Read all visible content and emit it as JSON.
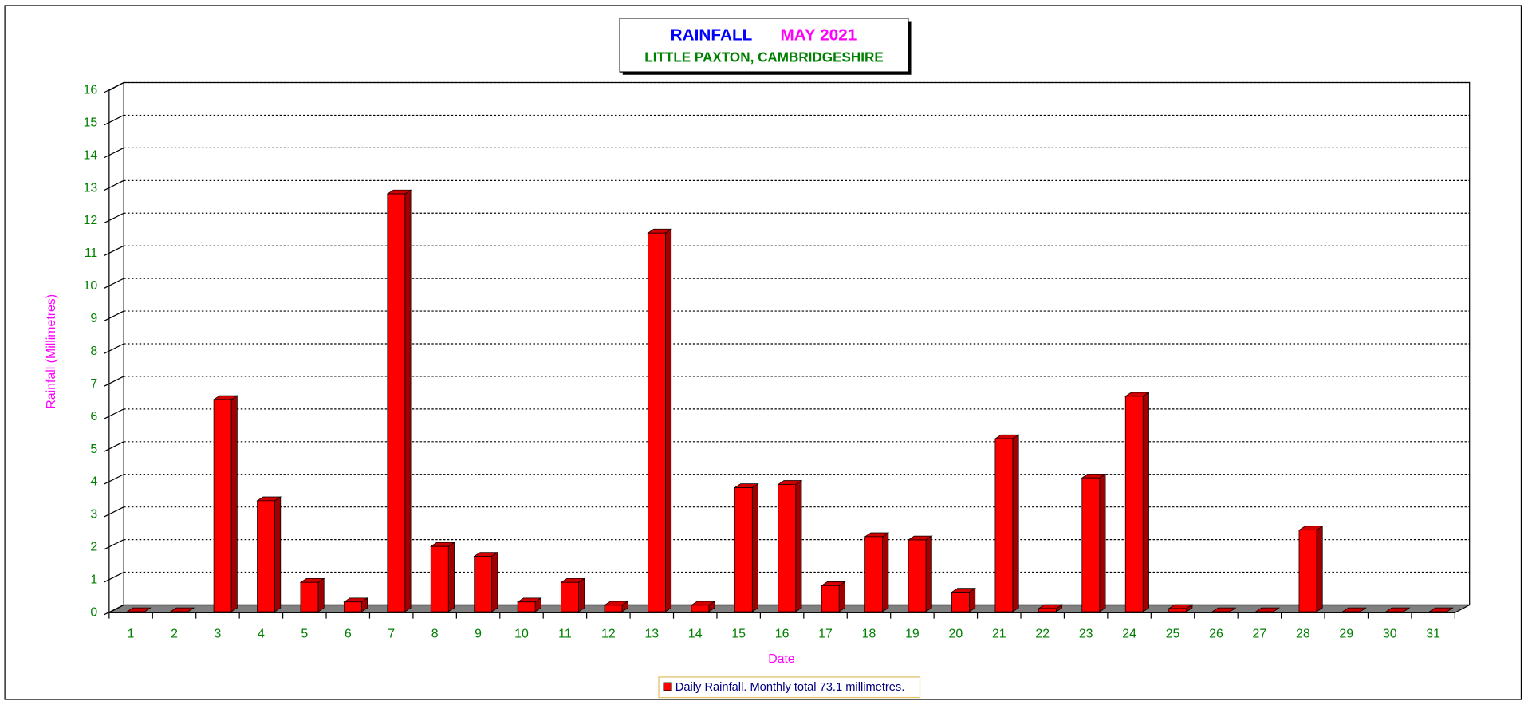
{
  "chart_data": {
    "type": "bar",
    "title": "RAINFALL",
    "title_month": "MAY 2021",
    "subtitle": "LITTLE PAXTON, CAMBRIDGESHIRE",
    "x_label": "Date",
    "y_label": "Rainfall  (Millimetres)",
    "categories": [
      "1",
      "2",
      "3",
      "4",
      "5",
      "6",
      "7",
      "8",
      "9",
      "10",
      "11",
      "12",
      "13",
      "14",
      "15",
      "16",
      "17",
      "18",
      "19",
      "20",
      "21",
      "22",
      "23",
      "24",
      "25",
      "26",
      "27",
      "28",
      "29",
      "30",
      "31"
    ],
    "series": [
      {
        "name": "Daily Rainfall. Monthly total 73.1 millimetres.",
        "color": "#ff0000",
        "values": [
          0,
          0,
          6.5,
          3.4,
          0.9,
          0.3,
          12.8,
          2.0,
          1.7,
          0.3,
          0.9,
          0.2,
          11.6,
          0.2,
          3.8,
          3.9,
          0.8,
          2.3,
          2.2,
          0.6,
          5.3,
          0.1,
          4.1,
          6.6,
          0.1,
          0,
          0,
          2.5,
          0,
          0,
          0
        ]
      }
    ],
    "ylim": [
      0,
      16
    ],
    "yticks": [
      0,
      1,
      2,
      3,
      4,
      5,
      6,
      7,
      8,
      9,
      10,
      11,
      12,
      13,
      14,
      15,
      16
    ],
    "grid": true
  }
}
